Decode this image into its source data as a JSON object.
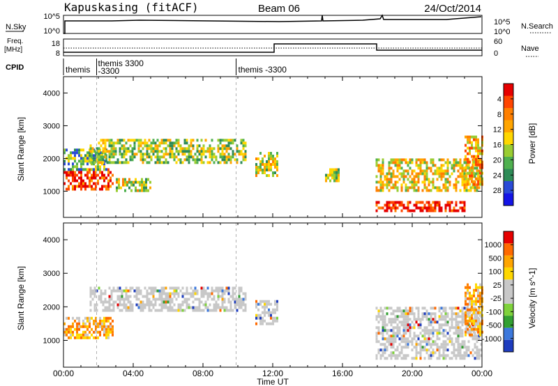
{
  "header": {
    "station": "Kapuskasing (fitACF)",
    "beam": "Beam 06",
    "date": "24/Oct/2014"
  },
  "noise_panel": {
    "left_label": "N.Sky",
    "left_ticks": [
      "10^5",
      "10^0"
    ],
    "right_ticks": [
      "10^5",
      "10^0"
    ],
    "right_label": "N.Search"
  },
  "freq_panel": {
    "left_label_1": "Freq.",
    "left_label_2": "[MHz]",
    "left_ticks": [
      "18",
      "8"
    ],
    "right_ticks": [
      "60",
      "0"
    ],
    "right_label": "Nave"
  },
  "cpid": {
    "label": "CPID",
    "entries": [
      {
        "start_hour": 0.0,
        "text_1": "themis",
        "text_2": ""
      },
      {
        "start_hour": 1.9,
        "text_1": "themis  3300",
        "text_2": "-3300"
      },
      {
        "start_hour": 9.9,
        "text_1": "themis  -3300",
        "text_2": ""
      }
    ]
  },
  "chart_data": [
    {
      "type": "heatmap",
      "title": "",
      "xlabel": "",
      "ylabel": "Slant Range [km]",
      "xlim": [
        0,
        24
      ],
      "ylim": [
        200,
        4500
      ],
      "ytick_labels": [
        "1000",
        "2000",
        "3000",
        "4000"
      ],
      "colorbar": {
        "label": "Power [dB]",
        "ticks": [
          "4",
          "8",
          "12",
          "16",
          "20",
          "24",
          "28"
        ],
        "colors": [
          "#1414e6",
          "#2a4bd7",
          "#2e8b57",
          "#4fb04f",
          "#9acd32",
          "#ffd700",
          "#ffa500",
          "#ff7f00",
          "#ff4500",
          "#e60000"
        ]
      },
      "echo_regions": [
        {
          "x0": 0.0,
          "x1": 2.8,
          "y0": 1100,
          "y1": 1700,
          "level": 0.9
        },
        {
          "x0": 0.0,
          "x1": 2.5,
          "y0": 1700,
          "y1": 2300,
          "level": 0.35
        },
        {
          "x0": 1.5,
          "x1": 10.5,
          "y0": 1900,
          "y1": 2600,
          "level": 0.45
        },
        {
          "x0": 3.0,
          "x1": 5.0,
          "y0": 1000,
          "y1": 1400,
          "level": 0.5
        },
        {
          "x0": 11.0,
          "x1": 12.3,
          "y0": 1500,
          "y1": 2200,
          "level": 0.5
        },
        {
          "x0": 15.0,
          "x1": 15.8,
          "y0": 1300,
          "y1": 1700,
          "level": 0.45
        },
        {
          "x0": 17.9,
          "x1": 24.0,
          "y0": 1000,
          "y1": 2000,
          "level": 0.55
        },
        {
          "x0": 17.9,
          "x1": 23.0,
          "y0": 400,
          "y1": 700,
          "level": 0.98
        },
        {
          "x0": 23.0,
          "x1": 24.0,
          "y0": 1200,
          "y1": 2700,
          "level": 0.65
        }
      ]
    },
    {
      "type": "heatmap",
      "title": "",
      "xlabel": "Time UT",
      "ylabel": "Slant Range [km]",
      "xlim": [
        0,
        24
      ],
      "ylim": [
        200,
        4500
      ],
      "xtick_labels": [
        "00:00",
        "04:00",
        "08:00",
        "12:00",
        "16:00",
        "20:00",
        "00:00"
      ],
      "ytick_labels": [
        "1000",
        "2000",
        "3000",
        "4000"
      ],
      "colorbar": {
        "label": "Velocity [m s^-1]",
        "ticks": [
          "1000",
          "500",
          "100",
          "25",
          "-25",
          "-100",
          "-500",
          "-1000"
        ],
        "colors": [
          "#1e3cbe",
          "#3c78dc",
          "#32a032",
          "#7fd23c",
          "#c8c8c8",
          "#c8c8c8",
          "#ffd700",
          "#ffa500",
          "#ff6a00",
          "#e60000"
        ]
      },
      "echo_regions": [
        {
          "x0": 0.0,
          "x1": 2.8,
          "y0": 1100,
          "y1": 1700,
          "level": "orange"
        },
        {
          "x0": 1.5,
          "x1": 10.5,
          "y0": 1900,
          "y1": 2600,
          "level": "gray"
        },
        {
          "x0": 11.0,
          "x1": 12.3,
          "y0": 1500,
          "y1": 2200,
          "level": "gray"
        },
        {
          "x0": 17.9,
          "x1": 24.0,
          "y0": 500,
          "y1": 2000,
          "level": "gray"
        },
        {
          "x0": 23.0,
          "x1": 24.0,
          "y0": 1200,
          "y1": 2700,
          "level": "orange"
        }
      ]
    }
  ]
}
